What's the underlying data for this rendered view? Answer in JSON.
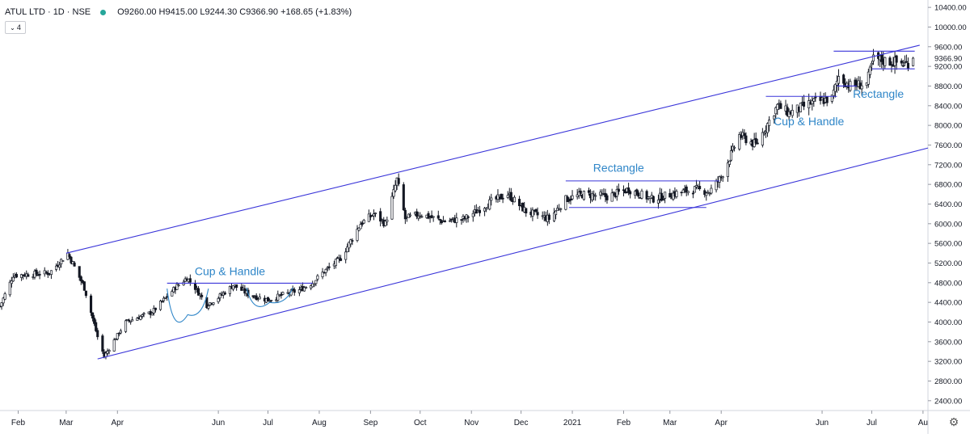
{
  "header": {
    "symbol": "ATUL LTD · 1D · NSE",
    "open_label": "O",
    "open": "9260.00",
    "high_label": "H",
    "high": "9415.00",
    "low_label": "L",
    "low": "9244.30",
    "close_label": "C",
    "close": "9366.90",
    "change": "+168.65 (+1.83%)",
    "indicator_count": "4",
    "status_dot_color": "#26a69a"
  },
  "chart_data": {
    "type": "candlestick",
    "y_axis": {
      "ticks": [
        2400,
        2800,
        3200,
        3600,
        4000,
        4400,
        4800,
        5200,
        5600,
        6000,
        6400,
        6800,
        7200,
        7600,
        8000,
        8400,
        8800,
        9200,
        9600,
        10000,
        10400
      ],
      "tick_labels": [
        "2400.00",
        "2800.00",
        "3200.00",
        "3600.00",
        "4000.00",
        "4400.00",
        "4800.00",
        "5200.00",
        "5600.00",
        "6000.00",
        "6400.00",
        "6800.00",
        "7200.00",
        "7600.00",
        "8000.00",
        "8400.00",
        "8800.00",
        "9200.00",
        "9600.00",
        "10000.00",
        "10400.00"
      ],
      "range": [
        2200,
        10550
      ],
      "position": "right"
    },
    "x_axis": {
      "labels": [
        "Feb",
        "Mar",
        "Apr",
        "Jun",
        "Jul",
        "Aug",
        "Sep",
        "Oct",
        "Nov",
        "Dec",
        "2021",
        "Feb",
        "Mar",
        "Apr",
        "Jun",
        "Jul",
        "Au"
      ],
      "label_dates": [
        "2020-02-01",
        "2020-03-01",
        "2020-04-01",
        "2020-06-01",
        "2020-07-01",
        "2020-08-01",
        "2020-09-01",
        "2020-10-01",
        "2020-11-01",
        "2020-12-01",
        "2021-01-01",
        "2021-02-01",
        "2021-03-01",
        "2021-04-01",
        "2021-06-01",
        "2021-07-01",
        "2021-08-01"
      ],
      "range": [
        "2020-01-21",
        "2021-08-04"
      ]
    },
    "price_line": {
      "value": 9366.9,
      "label": "9366.90",
      "color": "#131722"
    },
    "key_closes": [
      {
        "date": "2020-01-21",
        "close": 4320
      },
      {
        "date": "2020-01-29",
        "close": 4950
      },
      {
        "date": "2020-02-20",
        "close": 5000
      },
      {
        "date": "2020-03-02",
        "close": 5400
      },
      {
        "date": "2020-03-12",
        "close": 4700
      },
      {
        "date": "2020-03-20",
        "close": 3700
      },
      {
        "date": "2020-03-24",
        "close": 3300
      },
      {
        "date": "2020-04-06",
        "close": 4000
      },
      {
        "date": "2020-04-22",
        "close": 4200
      },
      {
        "date": "2020-05-06",
        "close": 4700
      },
      {
        "date": "2020-05-13",
        "close": 4900
      },
      {
        "date": "2020-05-18",
        "close": 4700
      },
      {
        "date": "2020-05-25",
        "close": 4350
      },
      {
        "date": "2020-06-01",
        "close": 4500
      },
      {
        "date": "2020-06-10",
        "close": 4750
      },
      {
        "date": "2020-06-20",
        "close": 4550
      },
      {
        "date": "2020-07-01",
        "close": 4450
      },
      {
        "date": "2020-07-10",
        "close": 4550
      },
      {
        "date": "2020-07-20",
        "close": 4650
      },
      {
        "date": "2020-07-28",
        "close": 4800
      },
      {
        "date": "2020-08-03",
        "close": 5000
      },
      {
        "date": "2020-08-14",
        "close": 5300
      },
      {
        "date": "2020-08-26",
        "close": 6000
      },
      {
        "date": "2020-09-03",
        "close": 6200
      },
      {
        "date": "2020-09-10",
        "close": 6000
      },
      {
        "date": "2020-09-17",
        "close": 6900
      },
      {
        "date": "2020-09-22",
        "close": 6100
      },
      {
        "date": "2020-10-01",
        "close": 6200
      },
      {
        "date": "2020-10-15",
        "close": 6050
      },
      {
        "date": "2020-10-28",
        "close": 6100
      },
      {
        "date": "2020-11-13",
        "close": 6450
      },
      {
        "date": "2020-11-23",
        "close": 6600
      },
      {
        "date": "2020-12-04",
        "close": 6250
      },
      {
        "date": "2020-12-18",
        "close": 6100
      },
      {
        "date": "2020-12-28",
        "close": 6500
      },
      {
        "date": "2021-01-08",
        "close": 6600
      },
      {
        "date": "2021-01-22",
        "close": 6550
      },
      {
        "date": "2021-02-04",
        "close": 6700
      },
      {
        "date": "2021-02-18",
        "close": 6500
      },
      {
        "date": "2021-03-02",
        "close": 6600
      },
      {
        "date": "2021-03-16",
        "close": 6700
      },
      {
        "date": "2021-03-25",
        "close": 6650
      },
      {
        "date": "2021-04-01",
        "close": 6950
      },
      {
        "date": "2021-04-12",
        "close": 7800
      },
      {
        "date": "2021-04-22",
        "close": 7600
      },
      {
        "date": "2021-05-05",
        "close": 8400
      },
      {
        "date": "2021-05-12",
        "close": 8250
      },
      {
        "date": "2021-05-25",
        "close": 8450
      },
      {
        "date": "2021-06-07",
        "close": 8550
      },
      {
        "date": "2021-06-11",
        "close": 9000
      },
      {
        "date": "2021-06-18",
        "close": 8800
      },
      {
        "date": "2021-06-28",
        "close": 8850
      },
      {
        "date": "2021-07-02",
        "close": 9350
      },
      {
        "date": "2021-07-12",
        "close": 9300
      },
      {
        "date": "2021-07-22",
        "close": 9250
      },
      {
        "date": "2021-07-26",
        "close": 9366.9
      }
    ],
    "channel_lines": [
      {
        "from": {
          "date": "2020-03-01",
          "price": 5400
        },
        "to": {
          "date": "2021-07-30",
          "price": 9630
        },
        "color": "#3a35d9"
      },
      {
        "from": {
          "date": "2020-03-20",
          "price": 3250
        },
        "to": {
          "date": "2021-08-04",
          "price": 7540
        },
        "color": "#3a35d9"
      }
    ],
    "level_lines": [
      {
        "from": "2020-05-01",
        "to": "2020-07-28",
        "price": 4790
      },
      {
        "from": "2020-12-28",
        "to": "2021-03-31",
        "price": 6870
      },
      {
        "from": "2020-12-30",
        "to": "2021-03-23",
        "price": 6330
      },
      {
        "from": "2021-04-28",
        "to": "2021-06-10",
        "price": 8590
      },
      {
        "from": "2021-06-08",
        "to": "2021-07-27",
        "price": 9510
      },
      {
        "from": "2021-07-01",
        "to": "2021-07-27",
        "price": 9150
      },
      {
        "from": "2021-06-10",
        "to": "2021-06-22",
        "price": 8800
      }
    ],
    "cup_curves": [
      {
        "from": "2020-05-01",
        "to": "2020-05-26",
        "rim": 4680,
        "bottom": 4150
      },
      {
        "from": "2020-06-18",
        "to": "2020-07-16",
        "rim": 4700,
        "bottom": 4400
      }
    ],
    "annotations": [
      {
        "text": "Cup & Handle",
        "date": "2020-06-08",
        "price": 4950,
        "color": "#2f86c8"
      },
      {
        "text": "Rectangle",
        "date": "2021-01-29",
        "price": 7060,
        "color": "#2f86c8"
      },
      {
        "text": "Cup & Handle",
        "date": "2021-05-24",
        "price": 8000,
        "color": "#2f86c8"
      },
      {
        "text": "Rectangle",
        "date": "2021-07-05",
        "price": 8560,
        "color": "#2f86c8"
      }
    ],
    "colors": {
      "line": "#3a35d9",
      "annotation": "#2f86c8",
      "candle": "#131722",
      "axis": "#d1d4dc"
    },
    "grid": false,
    "legend": "none"
  }
}
